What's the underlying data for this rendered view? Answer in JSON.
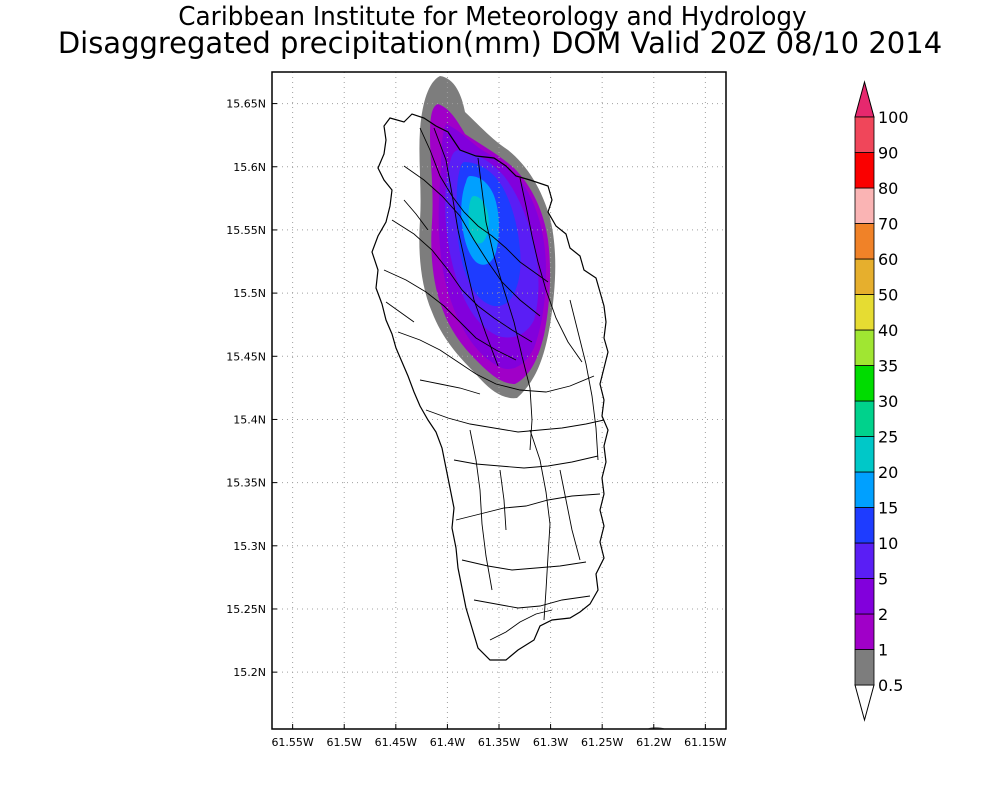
{
  "title": "Caribbean Institute for Meteorology and Hydrology",
  "subtitle": "Disaggregated precipitation(mm) DOM Valid 20Z 08/10 2014",
  "map": {
    "lon_range": [
      -61.57,
      -61.13
    ],
    "lat_range": [
      15.155,
      15.675
    ],
    "lat_ticks": [
      "15.2N",
      "15.25N",
      "15.3N",
      "15.35N",
      "15.4N",
      "15.45N",
      "15.5N",
      "15.55N",
      "15.6N",
      "15.65N"
    ],
    "lon_ticks": [
      "61.55W",
      "61.5W",
      "61.45W",
      "61.4W",
      "61.35W",
      "61.3W",
      "61.25W",
      "61.2W",
      "61.15W"
    ],
    "grid": true,
    "land_color": "#ffffff"
  },
  "colorbar": {
    "labels": [
      "0.5",
      "1",
      "2",
      "5",
      "10",
      "15",
      "20",
      "25",
      "30",
      "35",
      "40",
      "50",
      "60",
      "70",
      "80",
      "90",
      "100"
    ],
    "colors": [
      "#7d7d7d",
      "#a000c8",
      "#8200dc",
      "#5a1ef5",
      "#1e3cff",
      "#00a0ff",
      "#00c8c8",
      "#00d28c",
      "#00dc00",
      "#a0e632",
      "#e6dc32",
      "#e6af2d",
      "#f08228",
      "#fab4b4",
      "#fa0000",
      "#f0465a",
      "#e6286e"
    ],
    "below_color": "#ffffff",
    "above_color": "#e6286e"
  }
}
